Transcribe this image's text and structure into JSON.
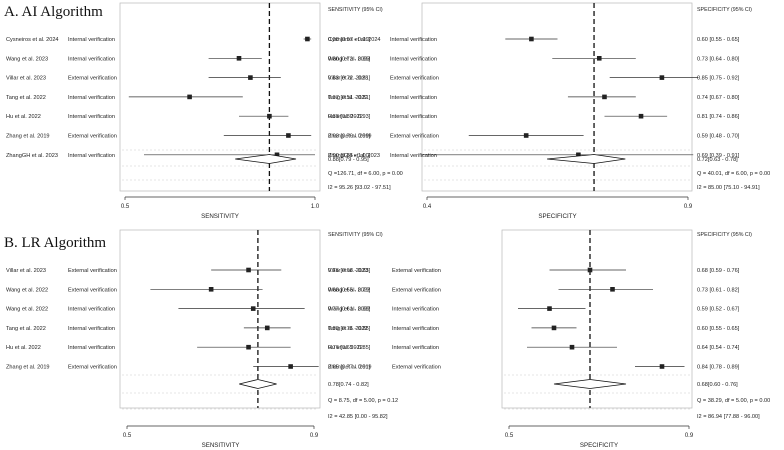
{
  "chart_data": [
    {
      "type": "forest",
      "section": "A. AI Algorithm",
      "measure": "SENSITIVITY",
      "header": "SENSITIVITY (95% CI)",
      "xlabel": "SENSITIVITY",
      "xlim": [
        0.5,
        1.0
      ],
      "ticks": [
        "0.5",
        "1.0"
      ],
      "reference": 0.88,
      "studies": [
        {
          "name": "Cysneiros et al. 2024",
          "verification": "Internal verification",
          "est": 0.98,
          "lo": 0.97,
          "hi": 0.99,
          "label": "0.98 [0.97 - 0.99]"
        },
        {
          "name": "Wang et al. 2023",
          "verification": "Internal verification",
          "est": 0.8,
          "lo": 0.72,
          "hi": 0.86,
          "label": "0.80 [0.72 - 0.86]"
        },
        {
          "name": "Villar et al. 2023",
          "verification": "External verification",
          "est": 0.83,
          "lo": 0.72,
          "hi": 0.91,
          "label": "0.83 [0.72 - 0.91]"
        },
        {
          "name": "Tang et al. 2022",
          "verification": "Internal verification",
          "est": 0.67,
          "lo": 0.51,
          "hi": 0.81,
          "label": "0.67 [0.51 - 0.81]"
        },
        {
          "name": "Hu et al. 2022",
          "verification": "Internal verification",
          "est": 0.88,
          "lo": 0.8,
          "hi": 0.93,
          "label": "0.88 [0.80 - 0.93]"
        },
        {
          "name": "Zhang et al. 2019",
          "verification": "External verification",
          "est": 0.93,
          "lo": 0.76,
          "hi": 0.99,
          "label": "0.93 [0.76 - 0.99]"
        },
        {
          "name": "ZhangGH et al. 2023",
          "verification": "Internal verification",
          "est": 0.9,
          "lo": 0.55,
          "hi": 1.0,
          "label": "0.90 [0.55 - 1.00]"
        }
      ],
      "pooled": {
        "est": 0.88,
        "lo": 0.79,
        "hi": 0.95,
        "label": "0.88[0.79 - 0.95]"
      },
      "q_text": "Q =126.71, df = 6.00, p = 0.00",
      "i2_text": "I2 = 95.26 [93.02 - 97.51]"
    },
    {
      "type": "forest",
      "section": "A. AI Algorithm",
      "measure": "SPECIFICITY",
      "header": "SPECIFICITY (95% CI)",
      "xlabel": "SPECIFICITY",
      "xlim": [
        0.4,
        0.9
      ],
      "ticks": [
        "0.4",
        "0.9"
      ],
      "reference": 0.72,
      "studies": [
        {
          "name": "Cysneiros et al. 2024",
          "verification": "Internal verification",
          "est": 0.6,
          "lo": 0.55,
          "hi": 0.65,
          "label": "0.60 [0.55 - 0.65]"
        },
        {
          "name": "Wang et al. 2023",
          "verification": "Internal verification",
          "est": 0.73,
          "lo": 0.64,
          "hi": 0.8,
          "label": "0.73 [0.64 - 0.80]"
        },
        {
          "name": "Villar et al. 2023",
          "verification": "External verification",
          "est": 0.85,
          "lo": 0.75,
          "hi": 0.92,
          "label": "0.85 [0.75 - 0.92]"
        },
        {
          "name": "Tang et al. 2022",
          "verification": "Internal verification",
          "est": 0.74,
          "lo": 0.67,
          "hi": 0.8,
          "label": "0.74 [0.67 - 0.80]"
        },
        {
          "name": "Hu et al. 2022",
          "verification": "Internal verification",
          "est": 0.81,
          "lo": 0.74,
          "hi": 0.86,
          "label": "0.81 [0.74 - 0.86]"
        },
        {
          "name": "Zhang et al. 2019",
          "verification": "External verification",
          "est": 0.59,
          "lo": 0.48,
          "hi": 0.7,
          "label": "0.59 [0.48 - 0.70]"
        },
        {
          "name": "ZhangGH et al. 2023",
          "verification": "Internal verification",
          "est": 0.69,
          "lo": 0.39,
          "hi": 0.91,
          "label": "0.69 [0.39 - 0.91]"
        }
      ],
      "pooled": {
        "est": 0.72,
        "lo": 0.63,
        "hi": 0.78,
        "label": "0.72[0.63 - 0.78]"
      },
      "q_text": "Q = 40.01, df = 6.00, p = 0.00",
      "i2_text": "I2 = 85.00 [75.10 - 94.91]"
    },
    {
      "type": "forest",
      "section": "B. LR Algorithm",
      "measure": "SENSITIVITY",
      "header": "SENSITIVITY (95% CI)",
      "xlabel": "SENSITIVITY",
      "xlim": [
        0.5,
        0.9
      ],
      "ticks": [
        "0.5",
        "0.9"
      ],
      "reference": 0.78,
      "studies": [
        {
          "name": "Villar et al. 2023",
          "verification": "External verification",
          "est": 0.76,
          "lo": 0.68,
          "hi": 0.83,
          "label": "0.76 [0.68 - 0.83]"
        },
        {
          "name": "Wang et al. 2022",
          "verification": "External verification",
          "est": 0.68,
          "lo": 0.55,
          "hi": 0.79,
          "label": "0.68 [0.55 - 0.79]"
        },
        {
          "name": "Wang et al. 2022",
          "verification": "Internal verification",
          "est": 0.77,
          "lo": 0.61,
          "hi": 0.88,
          "label": "0.77 [0.61 - 0.88]"
        },
        {
          "name": "Tang et al. 2022",
          "verification": "Internal verification",
          "est": 0.8,
          "lo": 0.75,
          "hi": 0.85,
          "label": "0.80 [0.75 - 0.85]"
        },
        {
          "name": "Hu et al. 2022",
          "verification": "Internal verification",
          "est": 0.76,
          "lo": 0.65,
          "hi": 0.85,
          "label": "0.76 [0.65 - 0.85]"
        },
        {
          "name": "Zhang et al. 2019",
          "verification": "External verification",
          "est": 0.85,
          "lo": 0.77,
          "hi": 0.91,
          "label": "0.85 [0.77 - 0.91]"
        }
      ],
      "pooled": {
        "est": 0.78,
        "lo": 0.74,
        "hi": 0.82,
        "label": "0.78[0.74 - 0.82]"
      },
      "q_text": "Q =  8.75, df = 5.00, p = 0.12",
      "i2_text": "I2 = 42.85 [0.00 - 95.82]"
    },
    {
      "type": "forest",
      "section": "B. LR Algorithm",
      "measure": "SPECIFICITY",
      "header": "SPECIFICITY (95% CI)",
      "xlabel": "SPECIFICITY",
      "xlim": [
        0.5,
        0.9
      ],
      "ticks": [
        "0.5",
        "0.9"
      ],
      "reference": 0.68,
      "studies": [
        {
          "name": "Villar et al. 2023",
          "verification": "External verification",
          "est": 0.68,
          "lo": 0.59,
          "hi": 0.76,
          "label": "0.68 [0.59 - 0.76]"
        },
        {
          "name": "Wang et al. 2022",
          "verification": "External verification",
          "est": 0.73,
          "lo": 0.61,
          "hi": 0.82,
          "label": "0.73 [0.61 - 0.82]"
        },
        {
          "name": "Wang et al. 2022",
          "verification": "Internal verification",
          "est": 0.59,
          "lo": 0.52,
          "hi": 0.67,
          "label": "0.59 [0.52 - 0.67]"
        },
        {
          "name": "Tang et al. 2022",
          "verification": "Internal verification",
          "est": 0.6,
          "lo": 0.55,
          "hi": 0.65,
          "label": "0.60 [0.55 - 0.65]"
        },
        {
          "name": "Hu et al. 2022",
          "verification": "Internal verification",
          "est": 0.64,
          "lo": 0.54,
          "hi": 0.74,
          "label": "0.64 [0.54 - 0.74]"
        },
        {
          "name": "Zhang et al. 2019",
          "verification": "External verification",
          "est": 0.84,
          "lo": 0.78,
          "hi": 0.89,
          "label": "0.84 [0.78 - 0.89]"
        }
      ],
      "pooled": {
        "est": 0.68,
        "lo": 0.6,
        "hi": 0.76,
        "label": "0.68[0.60 - 0.76]"
      },
      "q_text": "Q = 38.29, df = 5.00, p = 0.00",
      "i2_text": "I2 = 86.94 [77.88 - 96.00]"
    }
  ]
}
